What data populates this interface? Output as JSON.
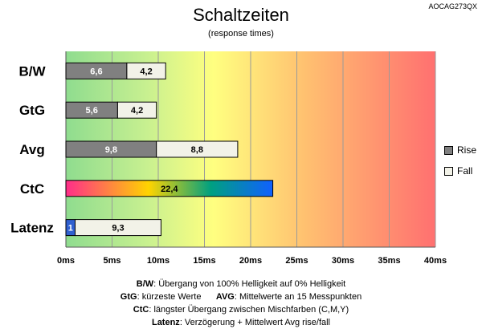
{
  "chart_data": {
    "type": "bar",
    "title": "Schaltzeiten",
    "subtitle": "(response times)",
    "code": "AOCAG273QX",
    "categories": [
      "B/W",
      "GtG",
      "Avg",
      "CtC",
      "Latenz"
    ],
    "series": [
      {
        "name": "Rise",
        "values": [
          6.6,
          5.6,
          9.8,
          null,
          1
        ]
      },
      {
        "name": "Fall",
        "values": [
          4.2,
          4.2,
          8.8,
          null,
          9.3
        ]
      }
    ],
    "ctc_value": 22.4,
    "value_labels": {
      "rise": [
        "6,6",
        "5,6",
        "9,8",
        "",
        "1"
      ],
      "fall": [
        "4,2",
        "4,2",
        "8,8",
        "",
        "9,3"
      ],
      "ctc": "22,4"
    },
    "x_ticks": [
      "0ms",
      "5ms",
      "10ms",
      "15ms",
      "20ms",
      "25ms",
      "30ms",
      "35ms",
      "40ms"
    ],
    "xlim": [
      0,
      40
    ],
    "grid": true,
    "legend_position": "right",
    "colors": {
      "rise": "#808080",
      "fall": "#f2f2e8",
      "latency": "#3060d0",
      "ctc_gradient": [
        "#ff2d8a",
        "#ffd400",
        "#00a080",
        "#1060ff"
      ],
      "background_gradient": [
        "#8fdc8f",
        "#ffff80",
        "#ffc070",
        "#ff7070"
      ]
    }
  },
  "legend": [
    {
      "label": "Rise",
      "color": "#808080"
    },
    {
      "label": "Fall",
      "color": "#f2f2e8"
    }
  ],
  "notes": {
    "line1_key": "B/W",
    "line1_text": ":  Übergang von 100% Helligkeit auf 0% Helligkeit",
    "line2_key1": "GtG",
    "line2_text1": ": kürzeste  Werte",
    "line2_key2": "AVG",
    "line2_text2": ": Mittelwerte  an 15 Messpunkten",
    "line3_key": "CtC",
    "line3_text": ": längster Übergang  zwischen Mischfarben (C,M,Y)",
    "line4_key": "Latenz",
    "line4_text": ": Verzögerung  + Mittelwert Avg rise/fall"
  }
}
